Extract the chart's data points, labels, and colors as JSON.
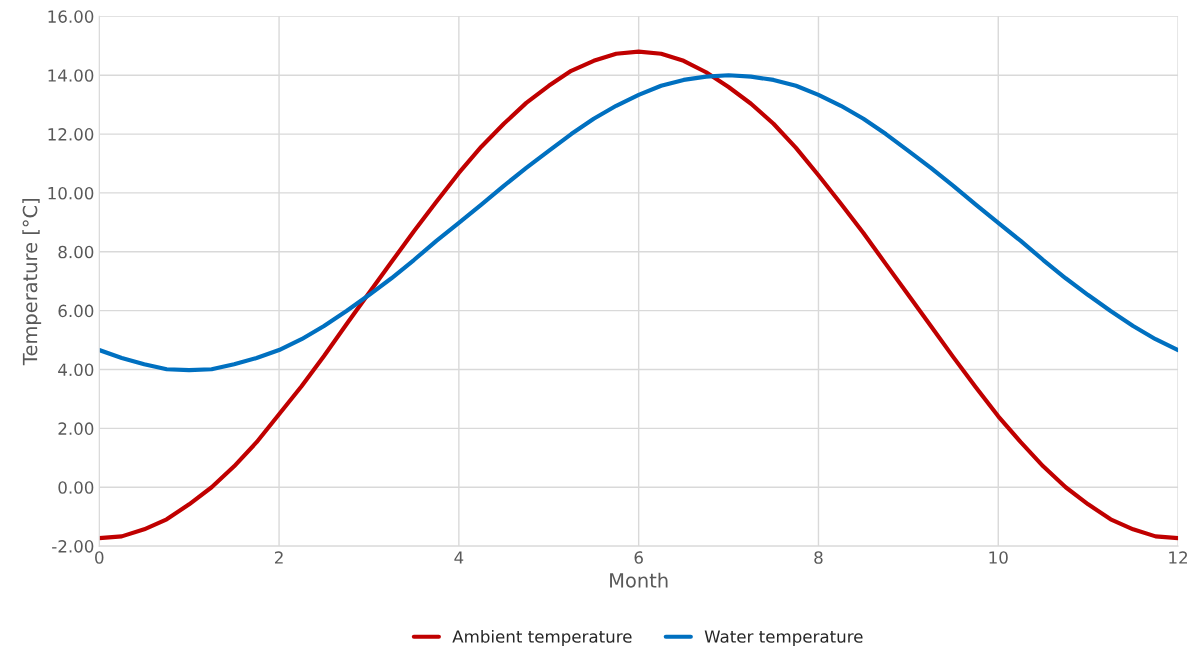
{
  "chart_data": {
    "type": "line",
    "xlabel": "Month",
    "ylabel": "Temperature [°C]",
    "x": [
      0,
      0.25,
      0.5,
      0.75,
      1,
      1.25,
      1.5,
      1.75,
      2,
      2.25,
      2.5,
      2.75,
      3,
      3.25,
      3.5,
      3.75,
      4,
      4.25,
      4.5,
      4.75,
      5,
      5.25,
      5.5,
      5.75,
      6,
      6.25,
      6.5,
      6.75,
      7,
      7.25,
      7.5,
      7.75,
      8,
      8.25,
      8.5,
      8.75,
      9,
      9.25,
      9.5,
      9.75,
      10,
      10.25,
      10.5,
      10.75,
      11,
      11.25,
      11.5,
      11.75,
      12
    ],
    "series": [
      {
        "name": "Ambient temperature",
        "color": "#c00000",
        "values": [
          -1.73,
          -1.67,
          -1.43,
          -1.09,
          -0.58,
          0.0,
          0.71,
          1.53,
          2.48,
          3.43,
          4.46,
          5.54,
          6.6,
          7.65,
          8.7,
          9.7,
          10.68,
          11.57,
          12.35,
          13.06,
          13.64,
          14.15,
          14.49,
          14.73,
          14.8,
          14.73,
          14.49,
          14.1,
          13.6,
          13.03,
          12.35,
          11.53,
          10.6,
          9.63,
          8.64,
          7.58,
          6.53,
          5.48,
          4.42,
          3.4,
          2.41,
          1.53,
          0.71,
          0.0,
          -0.58,
          -1.09,
          -1.43,
          -1.67,
          -1.73
        ]
      },
      {
        "name": "Water temperature",
        "color": "#0070c0",
        "values": [
          4.66,
          4.39,
          4.18,
          4.01,
          3.98,
          4.01,
          4.18,
          4.39,
          4.66,
          5.03,
          5.48,
          5.99,
          6.53,
          7.1,
          7.72,
          8.37,
          8.98,
          9.6,
          10.24,
          10.85,
          11.43,
          12.0,
          12.52,
          12.96,
          13.33,
          13.64,
          13.84,
          13.95,
          14.0,
          13.95,
          13.84,
          13.64,
          13.33,
          12.96,
          12.52,
          12.0,
          11.43,
          10.85,
          10.24,
          9.6,
          8.98,
          8.37,
          7.72,
          7.1,
          6.53,
          5.99,
          5.48,
          5.03,
          4.66
        ]
      }
    ],
    "xlim": [
      0,
      12
    ],
    "xticks": [
      0,
      2,
      4,
      6,
      8,
      10,
      12
    ],
    "ylim": [
      -2,
      16
    ],
    "yticks": [
      {
        "value": -2,
        "label": "-2.00"
      },
      {
        "value": 0,
        "label": "0.00"
      },
      {
        "value": 2,
        "label": "2.00"
      },
      {
        "value": 4,
        "label": "4.00"
      },
      {
        "value": 6,
        "label": "6.00"
      },
      {
        "value": 8,
        "label": "8.00"
      },
      {
        "value": 10,
        "label": "10.00"
      },
      {
        "value": 12,
        "label": "12.00"
      },
      {
        "value": 14,
        "label": "14.00"
      },
      {
        "value": 16,
        "label": "16.00"
      }
    ],
    "grid": true,
    "legend": "bottom",
    "marker": "none",
    "line_style": "solid"
  }
}
